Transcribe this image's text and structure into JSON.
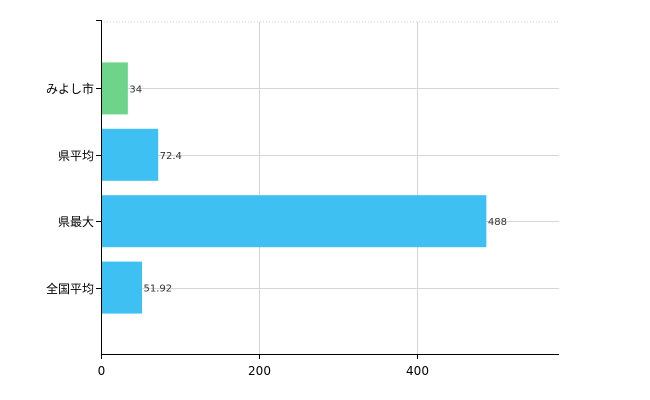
{
  "chart_data": {
    "type": "bar",
    "orientation": "horizontal",
    "categories": [
      "みよし市",
      "県平均",
      "県最大",
      "全国平均"
    ],
    "values": [
      34,
      72.4,
      488,
      51.92
    ],
    "value_labels": [
      "34",
      "72.4",
      "488",
      "51.92"
    ],
    "bar_colors": [
      "#6dd48a",
      "#3ec0f2",
      "#3ec0f2",
      "#3ec0f2"
    ],
    "xlim": [
      0,
      580
    ],
    "xticks": [
      0,
      200,
      400
    ],
    "xtick_labels": [
      "0",
      "200",
      "400"
    ],
    "title": "",
    "xlabel": "",
    "ylabel": "",
    "grid": true,
    "legend": "none"
  }
}
